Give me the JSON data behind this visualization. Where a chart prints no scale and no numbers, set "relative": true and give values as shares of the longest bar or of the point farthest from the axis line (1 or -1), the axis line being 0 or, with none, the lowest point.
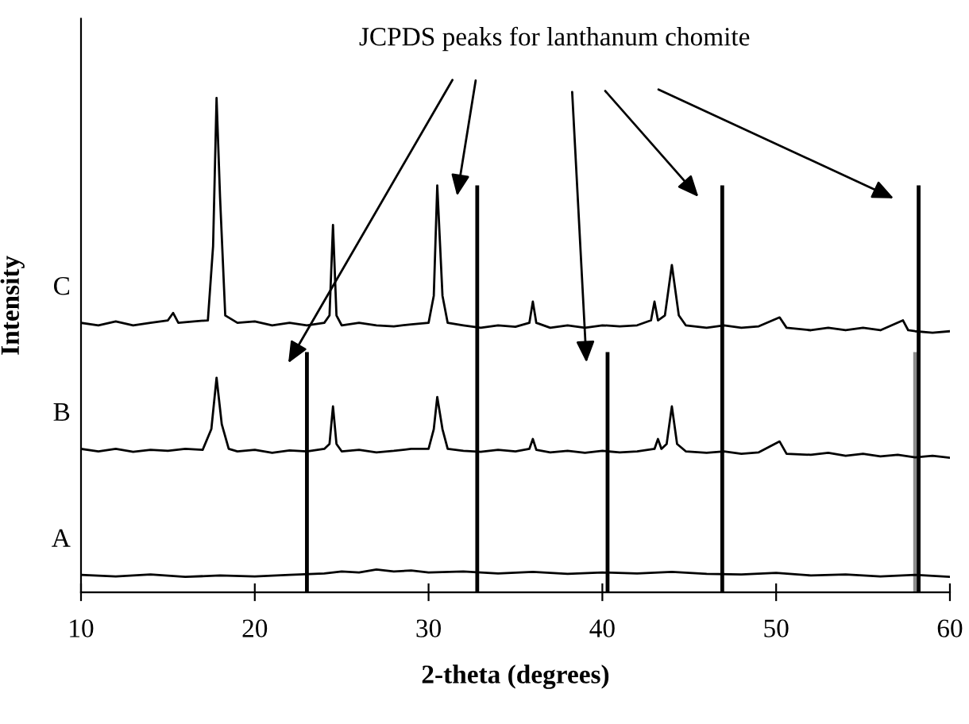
{
  "chart_data": {
    "type": "line",
    "relative": true,
    "xlabel": "2-theta (degrees)",
    "ylabel": "Intensity",
    "xlim": [
      10,
      60
    ],
    "xticks": [
      10,
      20,
      30,
      40,
      50,
      60
    ],
    "grid": false,
    "marker": "none",
    "line_style": "solid",
    "annotations": [
      "JCPDS peaks for lanthanum chomite"
    ],
    "series": [
      {
        "name": "C",
        "color": "#000000",
        "x": [
          10,
          11,
          12,
          13,
          14,
          15,
          15.3,
          15.6,
          16.5,
          17.3,
          17.6,
          17.8,
          18.0,
          18.3,
          19,
          20,
          21,
          22,
          23,
          24,
          24.3,
          24.5,
          24.7,
          25,
          26,
          27,
          28,
          29,
          30,
          30.3,
          30.5,
          30.8,
          31.1,
          32,
          33,
          34,
          35,
          35.8,
          36.0,
          36.2,
          37,
          38,
          39,
          40,
          41,
          42,
          42.8,
          43.0,
          43.2,
          43.6,
          44.0,
          44.4,
          44.8,
          46,
          47,
          48,
          49,
          50.2,
          50.6,
          52,
          53,
          54,
          55,
          56,
          57.3,
          57.6,
          58,
          59,
          60
        ],
        "values": [
          0.545,
          0.54,
          0.548,
          0.54,
          0.545,
          0.55,
          0.565,
          0.545,
          0.548,
          0.55,
          0.7,
          1.0,
          0.8,
          0.56,
          0.545,
          0.548,
          0.54,
          0.545,
          0.54,
          0.545,
          0.56,
          0.743,
          0.56,
          0.54,
          0.545,
          0.54,
          0.538,
          0.542,
          0.545,
          0.6,
          0.823,
          0.6,
          0.545,
          0.54,
          0.535,
          0.54,
          0.537,
          0.545,
          0.588,
          0.545,
          0.535,
          0.54,
          0.535,
          0.54,
          0.538,
          0.54,
          0.55,
          0.588,
          0.55,
          0.56,
          0.662,
          0.56,
          0.54,
          0.535,
          0.54,
          0.535,
          0.538,
          0.556,
          0.535,
          0.53,
          0.535,
          0.53,
          0.535,
          0.53,
          0.55,
          0.53,
          0.528,
          0.525,
          0.528
        ]
      },
      {
        "name": "B",
        "color": "#000000",
        "x": [
          10,
          11,
          12,
          13,
          14,
          15,
          16,
          17,
          17.5,
          17.8,
          18.1,
          18.5,
          19,
          20,
          21,
          22,
          23,
          24,
          24.3,
          24.5,
          24.7,
          25,
          26,
          27,
          28,
          29,
          30,
          30.3,
          30.5,
          30.8,
          31.1,
          32,
          33,
          34,
          35,
          35.8,
          36.0,
          36.2,
          37,
          38,
          39,
          40,
          41,
          42,
          43.0,
          43.2,
          43.4,
          43.7,
          44.0,
          44.3,
          44.8,
          46,
          47,
          48,
          49,
          50.2,
          50.6,
          52,
          53,
          54,
          55,
          56,
          57,
          58,
          59,
          60
        ],
        "values": [
          0.29,
          0.285,
          0.29,
          0.284,
          0.288,
          0.286,
          0.29,
          0.288,
          0.33,
          0.434,
          0.34,
          0.29,
          0.285,
          0.288,
          0.282,
          0.287,
          0.285,
          0.29,
          0.3,
          0.376,
          0.3,
          0.285,
          0.288,
          0.283,
          0.286,
          0.29,
          0.29,
          0.33,
          0.395,
          0.33,
          0.29,
          0.286,
          0.284,
          0.288,
          0.285,
          0.29,
          0.31,
          0.288,
          0.283,
          0.286,
          0.282,
          0.286,
          0.283,
          0.285,
          0.29,
          0.31,
          0.29,
          0.3,
          0.376,
          0.3,
          0.285,
          0.282,
          0.285,
          0.28,
          0.283,
          0.305,
          0.28,
          0.278,
          0.282,
          0.276,
          0.28,
          0.275,
          0.278,
          0.273,
          0.276,
          0.272
        ]
      },
      {
        "name": "A",
        "color": "#000000",
        "x": [
          10,
          12,
          14,
          16,
          18,
          20,
          22,
          24,
          25,
          26,
          27,
          28,
          29,
          30,
          32,
          34,
          36,
          38,
          40,
          42,
          44,
          46,
          48,
          50,
          52,
          54,
          56,
          58,
          60
        ],
        "values": [
          0.035,
          0.032,
          0.036,
          0.031,
          0.034,
          0.032,
          0.035,
          0.038,
          0.042,
          0.04,
          0.046,
          0.042,
          0.044,
          0.04,
          0.042,
          0.038,
          0.041,
          0.037,
          0.04,
          0.038,
          0.041,
          0.037,
          0.036,
          0.039,
          0.034,
          0.036,
          0.032,
          0.035,
          0.031
        ]
      },
      {
        "type": "bar",
        "x": [
          23.0,
          32.8,
          40.3,
          46.9,
          58.0,
          58.2
        ],
        "values": [
          0.486,
          0.823,
          0.486,
          0.823,
          0.486,
          0.823
        ],
        "colors": [
          "#000000",
          "#000000",
          "#000000",
          "#000000",
          "#8c8c8c",
          "#000000"
        ]
      }
    ]
  }
}
